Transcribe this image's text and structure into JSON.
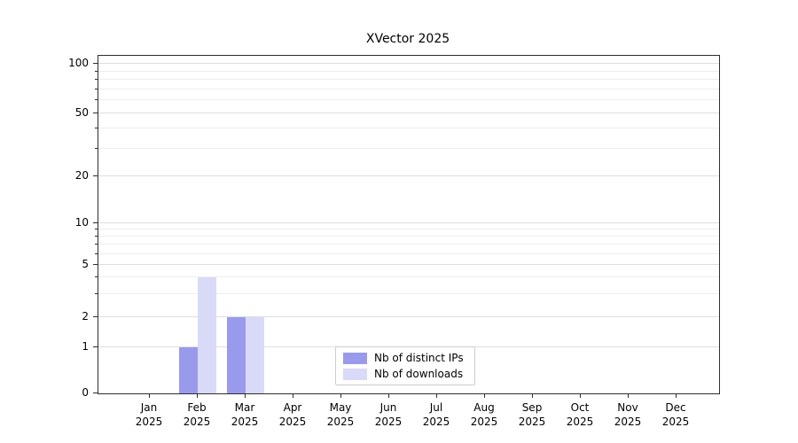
{
  "chart_data": {
    "type": "bar",
    "title": "XVector 2025",
    "year": "2025",
    "months": [
      "Jan",
      "Feb",
      "Mar",
      "Apr",
      "May",
      "Jun",
      "Jul",
      "Aug",
      "Sep",
      "Oct",
      "Nov",
      "Dec"
    ],
    "series": [
      {
        "name": "Nb of distinct IPs",
        "color": "#9a9aec",
        "values": [
          0,
          1,
          2,
          0,
          0,
          0,
          0,
          0,
          0,
          0,
          0,
          0
        ]
      },
      {
        "name": "Nb of downloads",
        "color": "#d9d9f8",
        "values": [
          0,
          4,
          2,
          0,
          0,
          0,
          0,
          0,
          0,
          0,
          0,
          0
        ]
      }
    ],
    "y_axis": {
      "scale": "symlog",
      "ticks": [
        0,
        1,
        2,
        5,
        10,
        20,
        50,
        100
      ],
      "minor_ticks": [
        3,
        4,
        6,
        7,
        8,
        9,
        30,
        40,
        60,
        70,
        80,
        90
      ],
      "ylim": [
        0,
        100
      ]
    },
    "grid": "horizontal",
    "legend_position": "lower center"
  }
}
